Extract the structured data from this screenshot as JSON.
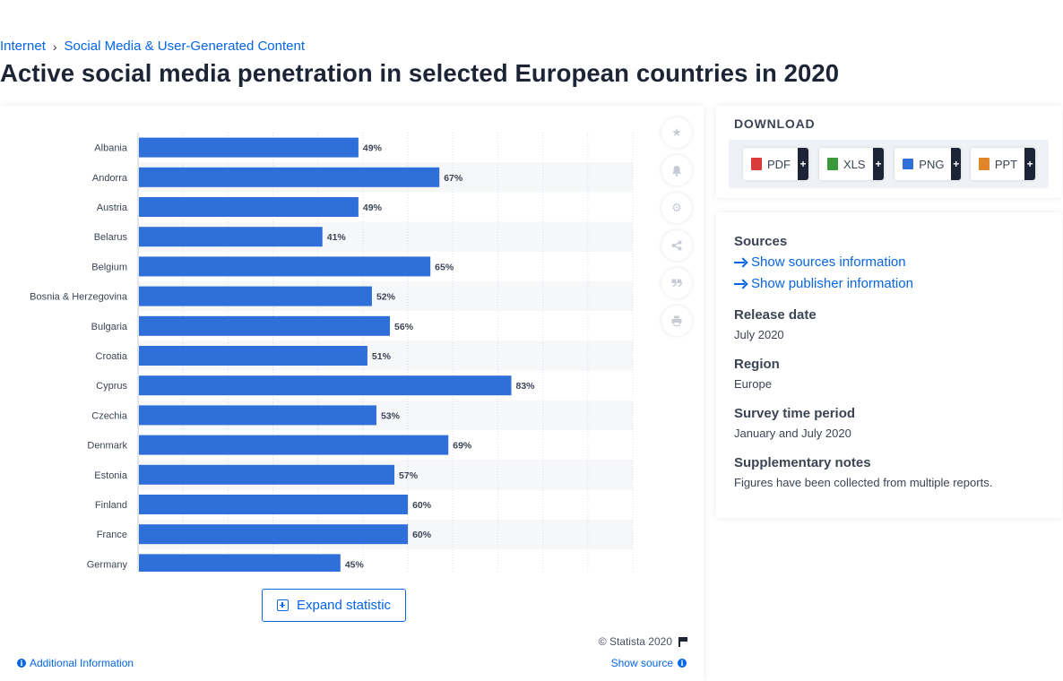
{
  "breadcrumb": {
    "items": [
      "Internet",
      "Social Media & User-Generated Content"
    ]
  },
  "page_title": "Active social media penetration in selected European countries in 2020",
  "chart_data": {
    "type": "bar",
    "orientation": "horizontal",
    "title": "",
    "categories": [
      "Albania",
      "Andorra",
      "Austria",
      "Belarus",
      "Belgium",
      "Bosnia & Herzegovina",
      "Bulgaria",
      "Croatia",
      "Cyprus",
      "Czechia",
      "Denmark",
      "Estonia",
      "Finland",
      "France",
      "Germany"
    ],
    "values": [
      49,
      67,
      49,
      41,
      65,
      52,
      56,
      51,
      83,
      53,
      69,
      57,
      60,
      60,
      45
    ],
    "value_labels": [
      "49%",
      "67%",
      "49%",
      "41%",
      "65%",
      "52%",
      "56%",
      "51%",
      "83%",
      "53%",
      "69%",
      "57%",
      "60%",
      "60%",
      "45%"
    ],
    "xlim": [
      0,
      110
    ],
    "grid": true,
    "bar_color": "#2e6fd9"
  },
  "tools": [
    "star-icon",
    "bell-icon",
    "gear-icon",
    "share-icon",
    "quote-icon",
    "print-icon"
  ],
  "expand_label": "Expand statistic",
  "copyright": "© Statista 2020",
  "additional_info": "Additional Information",
  "show_source": "Show source",
  "download": {
    "title": "DOWNLOAD",
    "formats": [
      {
        "label": "PDF",
        "color": "#d93a3a"
      },
      {
        "label": "XLS",
        "color": "#3a9a3a"
      },
      {
        "label": "PNG",
        "color": "#2e6fd9"
      },
      {
        "label": "PPT",
        "color": "#e0862a"
      }
    ],
    "plus": "+"
  },
  "info": {
    "sources_title": "Sources",
    "show_sources": "Show sources information",
    "show_publisher": "Show publisher information",
    "release_title": "Release date",
    "release_value": "July 2020",
    "region_title": "Region",
    "region_value": "Europe",
    "period_title": "Survey time period",
    "period_value": "January and July 2020",
    "notes_title": "Supplementary notes",
    "notes_value": "Figures have been collected from multiple reports."
  }
}
